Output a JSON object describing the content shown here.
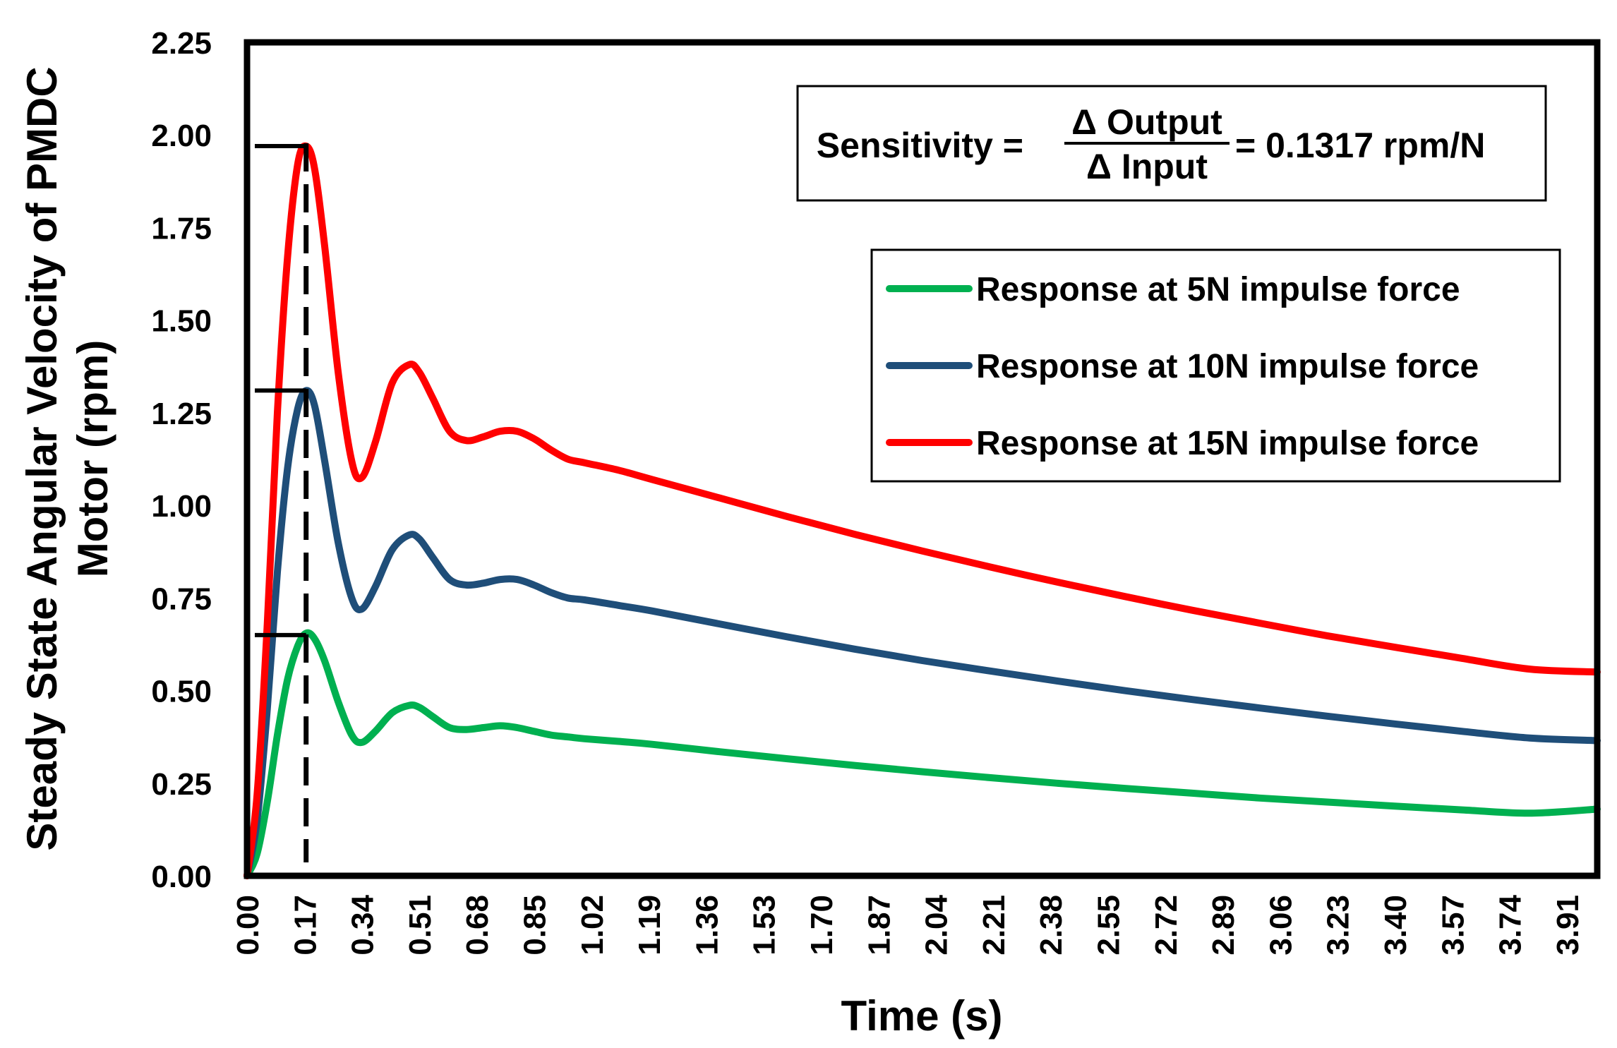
{
  "chart_data": {
    "type": "line",
    "title": "",
    "xlabel": "Time (s)",
    "ylabel": [
      "Steady State Angular Velocity of PMDC",
      "Motor (rpm)"
    ],
    "xlim": [
      0,
      4.0
    ],
    "ylim": [
      0,
      2.25
    ],
    "y_ticks": [
      "0.00",
      "0.25",
      "0.50",
      "0.75",
      "1.00",
      "1.25",
      "1.50",
      "1.75",
      "2.00",
      "2.25"
    ],
    "x_ticks": [
      "0.00",
      "0.17",
      "0.34",
      "0.51",
      "0.68",
      "0.85",
      "1.02",
      "1.19",
      "1.36",
      "1.53",
      "1.70",
      "1.87",
      "2.04",
      "2.21",
      "2.38",
      "2.55",
      "2.72",
      "2.89",
      "3.06",
      "3.23",
      "3.40",
      "3.57",
      "3.74",
      "3.91"
    ],
    "grid": false,
    "legend_position": "top-right",
    "series": [
      {
        "name": "Response at 5N impulse force",
        "color": "#00B050",
        "x": [
          0,
          0.03,
          0.06,
          0.09,
          0.12,
          0.15,
          0.175,
          0.2,
          0.23,
          0.27,
          0.31,
          0.34,
          0.38,
          0.43,
          0.48,
          0.51,
          0.55,
          0.6,
          0.65,
          0.7,
          0.75,
          0.8,
          0.85,
          0.9,
          0.95,
          1.0,
          1.1,
          1.2,
          1.4,
          1.6,
          1.8,
          2.0,
          2.2,
          2.4,
          2.6,
          2.8,
          3.0,
          3.2,
          3.4,
          3.6,
          3.8,
          4.0
        ],
        "values": [
          0,
          0.06,
          0.2,
          0.38,
          0.53,
          0.62,
          0.655,
          0.64,
          0.58,
          0.47,
          0.38,
          0.36,
          0.39,
          0.44,
          0.46,
          0.455,
          0.43,
          0.4,
          0.395,
          0.4,
          0.405,
          0.4,
          0.39,
          0.38,
          0.375,
          0.37,
          0.363,
          0.355,
          0.335,
          0.316,
          0.298,
          0.281,
          0.265,
          0.25,
          0.236,
          0.223,
          0.21,
          0.199,
          0.188,
          0.178,
          0.169,
          0.18
        ]
      },
      {
        "name": "Response at 10N impulse force",
        "color": "#1F4E79",
        "x": [
          0,
          0.03,
          0.06,
          0.09,
          0.12,
          0.15,
          0.175,
          0.2,
          0.23,
          0.27,
          0.31,
          0.34,
          0.38,
          0.43,
          0.48,
          0.51,
          0.55,
          0.6,
          0.65,
          0.7,
          0.75,
          0.8,
          0.85,
          0.9,
          0.95,
          1.0,
          1.1,
          1.2,
          1.4,
          1.6,
          1.8,
          2.0,
          2.2,
          2.4,
          2.6,
          2.8,
          3.0,
          3.2,
          3.4,
          3.6,
          3.8,
          4.0
        ],
        "values": [
          0,
          0.15,
          0.45,
          0.82,
          1.1,
          1.26,
          1.31,
          1.27,
          1.12,
          0.9,
          0.75,
          0.72,
          0.78,
          0.88,
          0.92,
          0.91,
          0.86,
          0.8,
          0.785,
          0.79,
          0.8,
          0.8,
          0.785,
          0.765,
          0.75,
          0.745,
          0.73,
          0.715,
          0.68,
          0.645,
          0.612,
          0.581,
          0.553,
          0.526,
          0.5,
          0.476,
          0.453,
          0.431,
          0.41,
          0.39,
          0.372,
          0.365
        ]
      },
      {
        "name": "Response at 15N impulse force",
        "color": "#FF0000",
        "x": [
          0,
          0.03,
          0.06,
          0.09,
          0.12,
          0.15,
          0.175,
          0.2,
          0.23,
          0.27,
          0.31,
          0.34,
          0.38,
          0.43,
          0.48,
          0.51,
          0.55,
          0.6,
          0.65,
          0.7,
          0.75,
          0.8,
          0.85,
          0.9,
          0.95,
          1.0,
          1.1,
          1.2,
          1.4,
          1.6,
          1.8,
          2.0,
          2.2,
          2.4,
          2.6,
          2.8,
          3.0,
          3.2,
          3.4,
          3.6,
          3.8,
          4.0
        ],
        "values": [
          0,
          0.22,
          0.68,
          1.25,
          1.67,
          1.92,
          1.97,
          1.91,
          1.7,
          1.36,
          1.12,
          1.075,
          1.17,
          1.33,
          1.38,
          1.36,
          1.29,
          1.2,
          1.175,
          1.185,
          1.2,
          1.2,
          1.18,
          1.15,
          1.125,
          1.115,
          1.095,
          1.07,
          1.02,
          0.97,
          0.922,
          0.877,
          0.834,
          0.793,
          0.754,
          0.717,
          0.682,
          0.648,
          0.617,
          0.587,
          0.558,
          0.55
        ]
      }
    ],
    "annotations": {
      "peak_markers": [
        0.65,
        1.31,
        1.97
      ],
      "peak_time": 0.175,
      "formula_prefix": "Sensitivity = ",
      "formula_numerator": "Δ Output",
      "formula_denominator": "Δ Input",
      "formula_suffix": "= 0.1317 rpm/N"
    }
  }
}
